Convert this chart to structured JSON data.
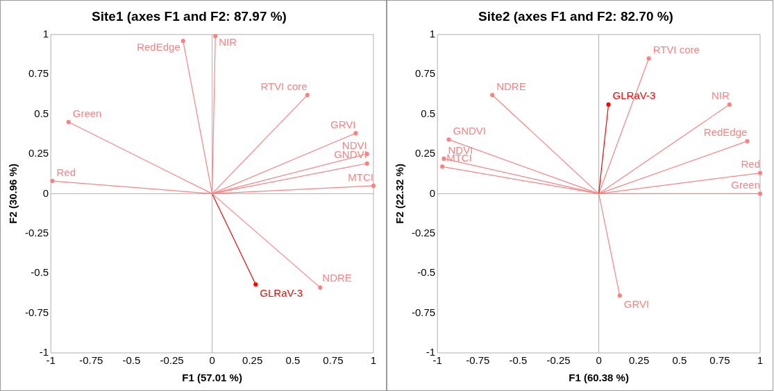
{
  "chart_data": [
    {
      "type": "line",
      "title": "Site1 (axes F1 and F2: 87.97 %)",
      "xlabel": "F1 (57.01 %)",
      "ylabel": "F2 (30.96 %)",
      "xlim": [
        -1,
        1
      ],
      "ylim": [
        -1,
        1
      ],
      "xticks": [
        -1,
        -0.75,
        -0.5,
        -0.25,
        0,
        0.25,
        0.5,
        0.75,
        1
      ],
      "yticks": [
        -1,
        -0.75,
        -0.5,
        -0.25,
        0,
        0.25,
        0.5,
        0.75,
        1
      ],
      "legend": false,
      "marker": "circle",
      "series": [
        {
          "name": "Red",
          "color": "#ff8080",
          "x": [
            0,
            -0.99
          ],
          "values": [
            0,
            0.08
          ]
        },
        {
          "name": "Green",
          "color": "#ff8080",
          "x": [
            0,
            -0.89
          ],
          "values": [
            0,
            0.45
          ]
        },
        {
          "name": "RedEdge",
          "color": "#ff8080",
          "x": [
            0,
            -0.18
          ],
          "values": [
            0,
            0.96
          ]
        },
        {
          "name": "NIR",
          "color": "#ff8080",
          "x": [
            0,
            0.02
          ],
          "values": [
            0,
            0.99
          ]
        },
        {
          "name": "RTVI core",
          "color": "#ff8080",
          "x": [
            0,
            0.59
          ],
          "values": [
            0,
            0.62
          ]
        },
        {
          "name": "GRVI",
          "color": "#ff8080",
          "x": [
            0,
            0.89
          ],
          "values": [
            0,
            0.38
          ]
        },
        {
          "name": "NDVI",
          "color": "#ff8080",
          "x": [
            0,
            0.96
          ],
          "values": [
            0,
            0.25
          ]
        },
        {
          "name": "GNDVI",
          "color": "#ff8080",
          "x": [
            0,
            0.96
          ],
          "values": [
            0,
            0.19
          ]
        },
        {
          "name": "MTCI",
          "color": "#ff8080",
          "x": [
            0,
            1.0
          ],
          "values": [
            0,
            0.05
          ]
        },
        {
          "name": "NDRE",
          "color": "#ff8080",
          "x": [
            0,
            0.67
          ],
          "values": [
            0,
            -0.59
          ]
        },
        {
          "name": "GLRaV-3",
          "color": "#ff0000",
          "x": [
            0,
            0.27
          ],
          "values": [
            0,
            -0.57
          ]
        }
      ]
    },
    {
      "type": "line",
      "title": "Site2 (axes F1 and F2: 82.70 %)",
      "xlabel": "F1 (60.38 %)",
      "ylabel": "F2 (22.32 %)",
      "xlim": [
        -1,
        1
      ],
      "ylim": [
        -1,
        1
      ],
      "xticks": [
        -1,
        -0.75,
        -0.5,
        -0.25,
        0,
        0.25,
        0.5,
        0.75,
        1
      ],
      "yticks": [
        -1,
        -0.75,
        -0.5,
        -0.25,
        0,
        0.25,
        0.5,
        0.75,
        1
      ],
      "legend": false,
      "marker": "circle",
      "series": [
        {
          "name": "NDRE",
          "color": "#ff8080",
          "x": [
            0,
            -0.66
          ],
          "values": [
            0,
            0.62
          ]
        },
        {
          "name": "GNDVI",
          "color": "#ff8080",
          "x": [
            0,
            -0.93
          ],
          "values": [
            0,
            0.34
          ]
        },
        {
          "name": "NDVI",
          "color": "#ff8080",
          "x": [
            0,
            -0.96
          ],
          "values": [
            0,
            0.22
          ]
        },
        {
          "name": "MTCI",
          "color": "#ff8080",
          "x": [
            0,
            -0.97
          ],
          "values": [
            0,
            0.17
          ]
        },
        {
          "name": "GLRaV-3",
          "color": "#ff0000",
          "x": [
            0,
            0.06
          ],
          "values": [
            0,
            0.56
          ]
        },
        {
          "name": "RTVI core",
          "color": "#ff8080",
          "x": [
            0,
            0.31
          ],
          "values": [
            0,
            0.85
          ]
        },
        {
          "name": "NIR",
          "color": "#ff8080",
          "x": [
            0,
            0.81
          ],
          "values": [
            0,
            0.56
          ]
        },
        {
          "name": "RedEdge",
          "color": "#ff8080",
          "x": [
            0,
            0.92
          ],
          "values": [
            0,
            0.33
          ]
        },
        {
          "name": "Red",
          "color": "#ff8080",
          "x": [
            0,
            1.0
          ],
          "values": [
            0,
            0.13
          ]
        },
        {
          "name": "Green",
          "color": "#ff8080",
          "x": [
            0,
            1.0
          ],
          "values": [
            0,
            0.0
          ]
        },
        {
          "name": "GRVI",
          "color": "#ff8080",
          "x": [
            0,
            0.13
          ],
          "values": [
            0,
            -0.64
          ]
        }
      ]
    }
  ]
}
